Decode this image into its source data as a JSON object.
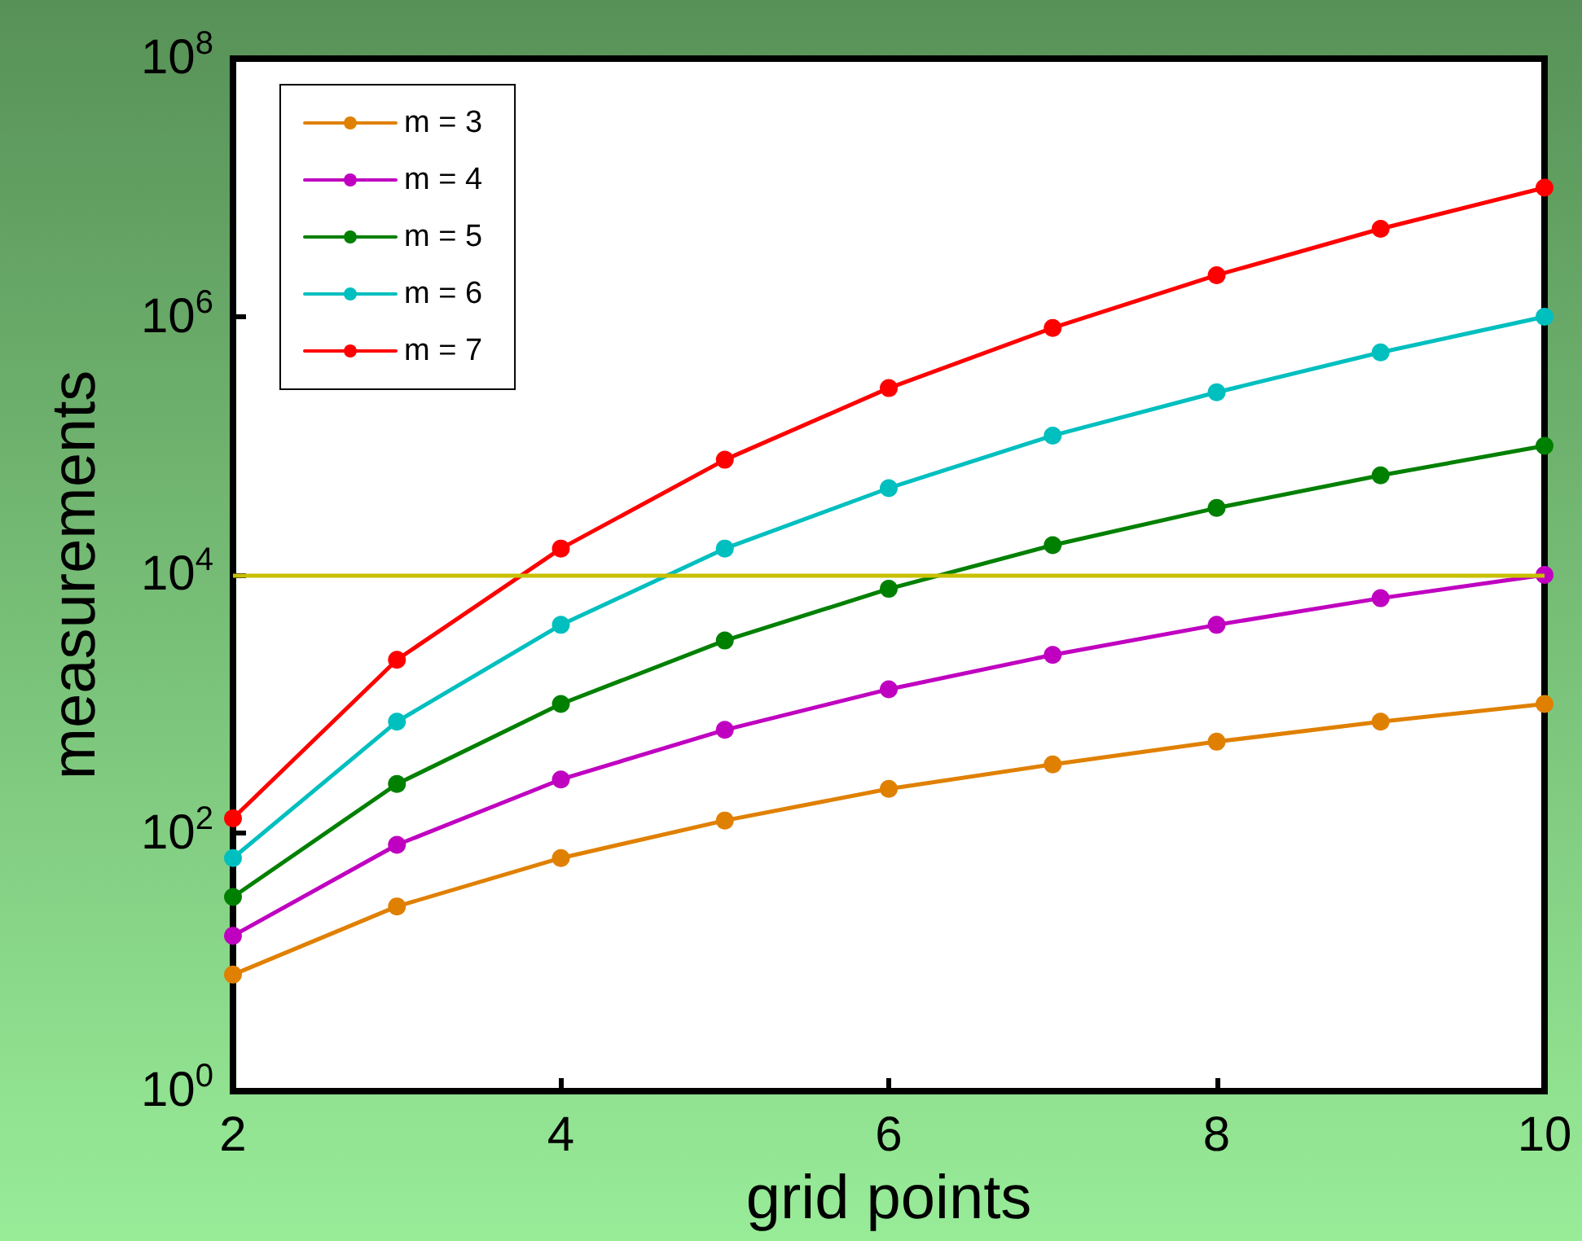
{
  "chart_data": {
    "type": "line",
    "xlabel": "grid points",
    "ylabel": "measurements",
    "x": [
      2,
      3,
      4,
      5,
      6,
      7,
      8,
      9,
      10
    ],
    "log": "y",
    "xlim": [
      2,
      10
    ],
    "xticks": [
      2,
      4,
      6,
      8,
      10
    ],
    "ylim": [
      1,
      100000000
    ],
    "yticks": [
      {
        "value": 1,
        "label": "10$^{0}$"
      },
      {
        "value": 100,
        "label": "10$^{2}$"
      },
      {
        "value": 10000,
        "label": "10$^{4}$"
      },
      {
        "value": 1000000,
        "label": "10$^{6}$"
      },
      {
        "value": 100000000,
        "label": "10$^{8}$"
      }
    ],
    "grid": false,
    "legend": "top left",
    "marker": "circle",
    "line_style": "solid",
    "series": [
      {
        "name": "m = 3",
        "color": "#e08000",
        "values": [
          8,
          27,
          64,
          125,
          220,
          340,
          510,
          730,
          1000
        ]
      },
      {
        "name": "m = 4",
        "color": "#c000c0",
        "values": [
          16,
          81,
          260,
          630,
          1300,
          2400,
          4100,
          6600,
          10000
        ]
      },
      {
        "name": "m = 5",
        "color": "#008000",
        "values": [
          32,
          240,
          1000,
          3100,
          7800,
          17000,
          33000,
          59000,
          100000
        ]
      },
      {
        "name": "m = 6",
        "color": "#00bfbf",
        "values": [
          64,
          730,
          4100,
          16000,
          47000,
          120000,
          260000,
          530000,
          1000000
        ]
      },
      {
        "name": "m = 7",
        "color": "#ff0000",
        "values": [
          130,
          2200,
          16000,
          78000,
          280000,
          820000,
          2100000,
          4800000,
          10000000
        ]
      }
    ],
    "ref_lines": [
      {
        "axis": "y",
        "value": 10000,
        "color": "#c8c000",
        "line_style": "solid"
      }
    ]
  }
}
